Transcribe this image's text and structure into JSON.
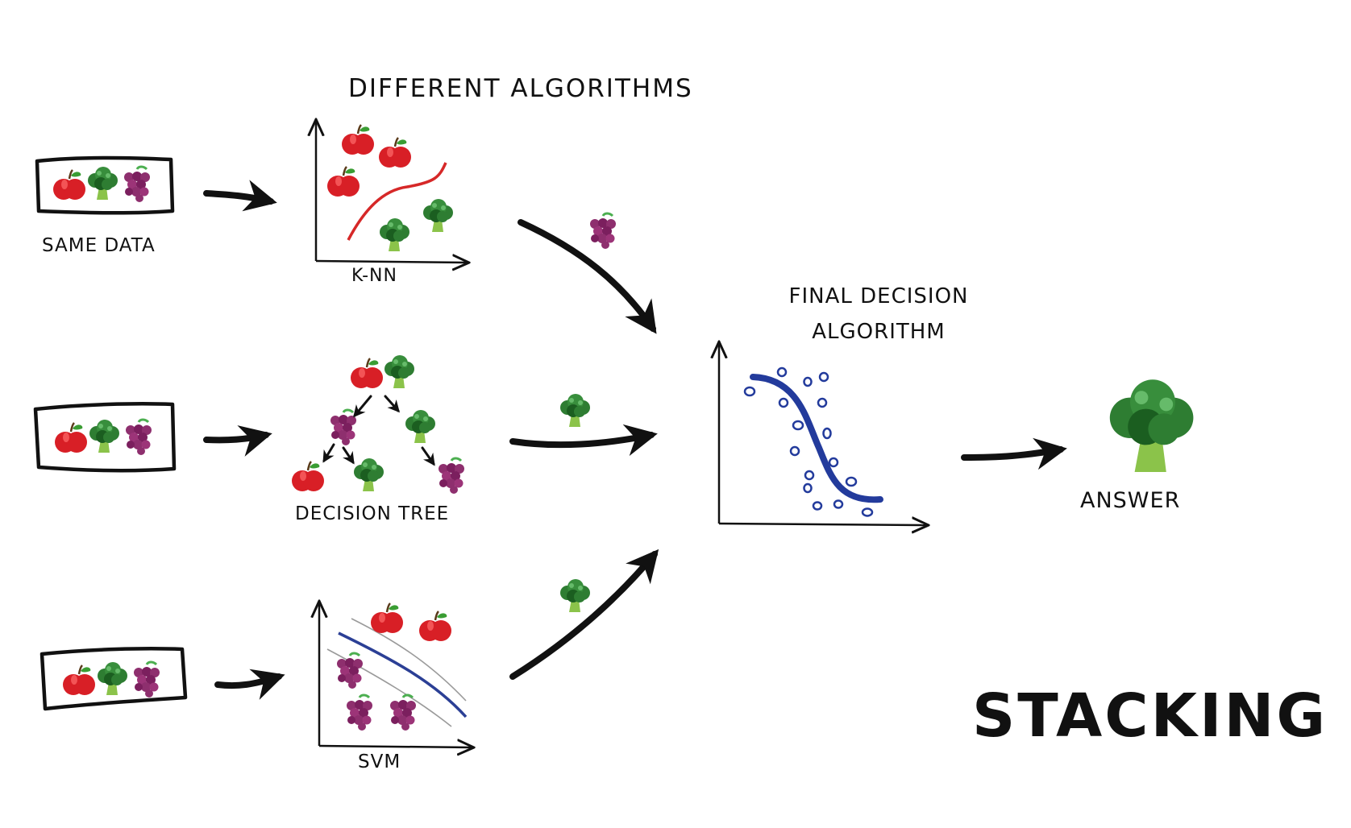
{
  "title": "DIFFERENT ALGORITHMS",
  "input_label": "SAME DATA",
  "algorithms": [
    {
      "label": "K-NN"
    },
    {
      "label": "DECISION TREE"
    },
    {
      "label": "SVM"
    }
  ],
  "final": {
    "line1": "FINAL DECISION",
    "line2": "ALGORITHM"
  },
  "answer_label": "ANSWER",
  "method_label": "STACKING",
  "icons": [
    "apple-icon",
    "broccoli-icon",
    "grapes-icon"
  ],
  "colors": {
    "ink": "#111111",
    "knn_curve": "#d62828",
    "final_curve": "#233b9c",
    "svm_line": "#2b3f95",
    "svm_margin": "#9a9a9a"
  }
}
